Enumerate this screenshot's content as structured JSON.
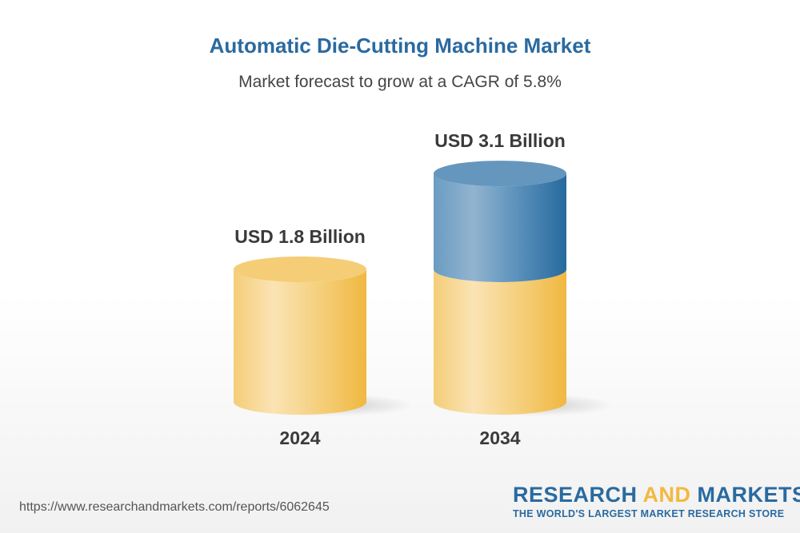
{
  "chart_data": {
    "type": "bar",
    "title": "Automatic Die-Cutting Machine Market",
    "subtitle": "Market forecast to grow at a CAGR of 5.8%",
    "categories": [
      "2024",
      "2034"
    ],
    "values": [
      1.8,
      3.1
    ],
    "data_labels": [
      "USD 1.8 Billion",
      "USD 3.1 Billion"
    ],
    "unit": "USD Billion",
    "style": "3d-cylinder",
    "colors": {
      "base": "#f2c050",
      "growth": "#2a6aa0"
    }
  },
  "footer": {
    "url": "https://www.researchandmarkets.com/reports/6062645",
    "logo_part1": "RESEARCH ",
    "logo_part2": "AND",
    "logo_part3": " MARKETS",
    "tagline": "THE WORLD'S LARGEST MARKET RESEARCH STORE"
  }
}
